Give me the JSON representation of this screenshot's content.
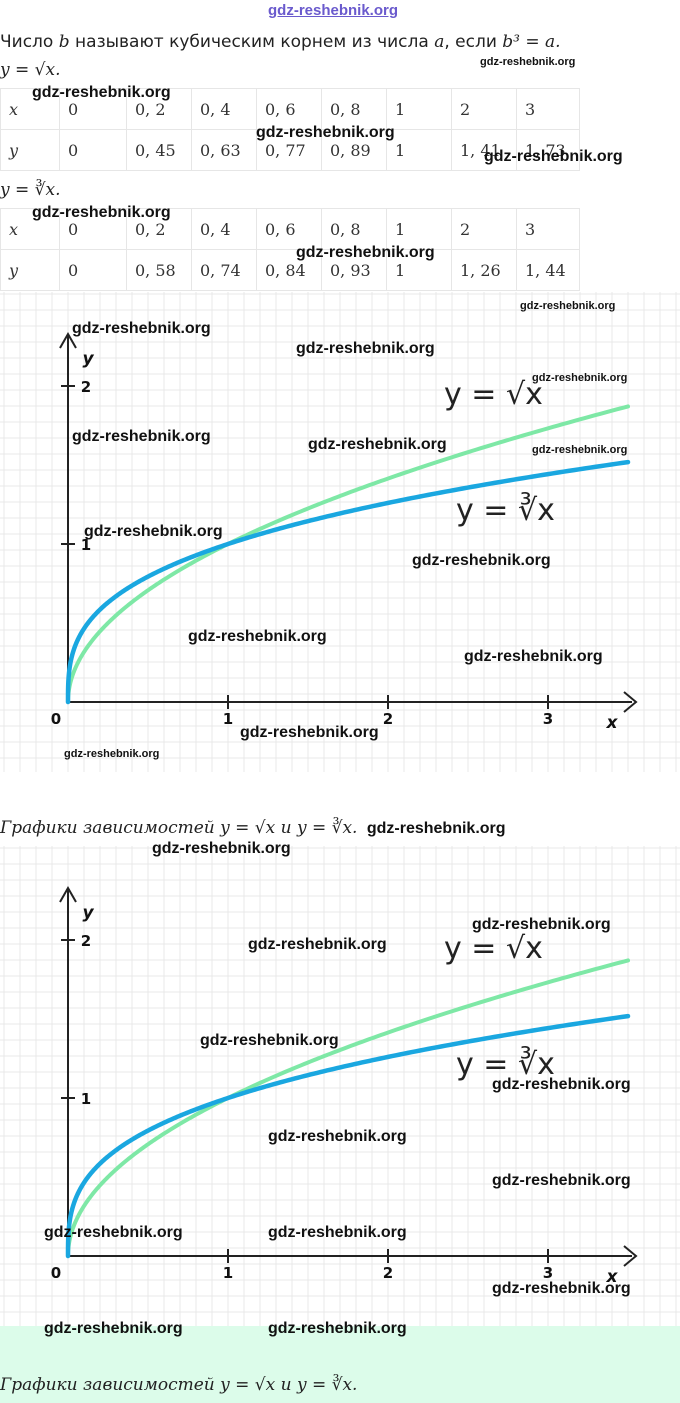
{
  "watermark_top": "gdz-reshebnik.org",
  "watermark": "gdz-reshebnik.org",
  "definition": {
    "prefix": "Число",
    "b": "b",
    "middle": "называют кубическим корнем из числа",
    "a": "a",
    "suffix": ", если",
    "formula": "b³ = a."
  },
  "sqrt_title": "y = √x.",
  "cbrt_title": "y = ∛x.",
  "table_sqrt": {
    "x_label": "x",
    "y_label": "y",
    "x": [
      "0",
      "0, 2",
      "0, 4",
      "0, 6",
      "0, 8",
      "1",
      "2",
      "3"
    ],
    "y": [
      "0",
      "0, 45",
      "0, 63",
      "0, 77",
      "0, 89",
      "1",
      "1, 41",
      "1, 73"
    ]
  },
  "table_cbrt": {
    "x_label": "x",
    "y_label": "y",
    "x": [
      "0",
      "0, 2",
      "0, 4",
      "0, 6",
      "0, 8",
      "1",
      "2",
      "3"
    ],
    "y": [
      "0",
      "0, 58",
      "0, 74",
      "0, 84",
      "0, 93",
      "1",
      "1, 26",
      "1, 44"
    ]
  },
  "chart_data": {
    "type": "line",
    "xlabel": "x",
    "ylabel": "y",
    "xlim": [
      0,
      3.5
    ],
    "ylim": [
      0,
      2.3
    ],
    "x_ticks": [
      "0",
      "1",
      "2",
      "3"
    ],
    "y_ticks": [
      "1",
      "2"
    ],
    "grid": true,
    "series": [
      {
        "name": "y = √x",
        "color": "#7ee8a6",
        "x": [
          0,
          0.2,
          0.4,
          0.6,
          0.8,
          1,
          2,
          3,
          3.5
        ],
        "y": [
          0,
          0.45,
          0.63,
          0.77,
          0.89,
          1,
          1.41,
          1.73,
          1.87
        ]
      },
      {
        "name": "y = ∛x",
        "color": "#1aa7e0",
        "x": [
          0,
          0.2,
          0.4,
          0.6,
          0.8,
          1,
          2,
          3,
          3.5
        ],
        "y": [
          0,
          0.58,
          0.74,
          0.84,
          0.93,
          1,
          1.26,
          1.44,
          1.52
        ]
      }
    ]
  },
  "caption": "Графики зависимостей y = √x и y = ∛x.",
  "caption_tail": "gdz-reshebnik.org"
}
